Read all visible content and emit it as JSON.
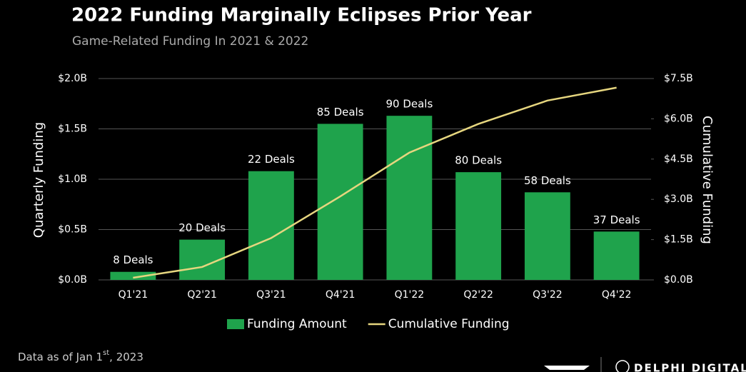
{
  "chart_data": {
    "type": "bar_line",
    "title": "2022 Funding Marginally Eclipses Prior Year",
    "subtitle": "Game-Related Funding In 2021 & 2022",
    "y_label": "Quarterly Funding",
    "y2_label": "Cumulative Funding",
    "categories": [
      "Q1'21",
      "Q2'21",
      "Q3'21",
      "Q4'21",
      "Q1'22",
      "Q2'22",
      "Q3'22",
      "Q4'22"
    ],
    "series": [
      {
        "name": "Funding Amount",
        "type": "bar",
        "color": "#1fa34c",
        "values": [
          0.08,
          0.4,
          1.08,
          1.55,
          1.63,
          1.07,
          0.87,
          0.48
        ],
        "bar_labels": [
          "8 Deals",
          "20 Deals",
          "22 Deals",
          "85 Deals",
          "90 Deals",
          "80 Deals",
          "58 Deals",
          "37 Deals"
        ]
      },
      {
        "name": "Cumulative Funding",
        "type": "line",
        "axis": "y2",
        "color": "#e6d67f",
        "values": [
          0.08,
          0.48,
          1.56,
          3.11,
          4.74,
          5.81,
          6.68,
          7.16
        ]
      }
    ],
    "ylim": [
      0,
      2
    ],
    "yticks": [
      {
        "value": 0,
        "label": "$0.0B"
      },
      {
        "value": 0.5,
        "label": "$0.5B"
      },
      {
        "value": 1,
        "label": "$1.0B"
      },
      {
        "value": 1.5,
        "label": "$1.5B"
      },
      {
        "value": 2,
        "label": "$2.0B"
      }
    ],
    "y2lim": [
      0,
      7.5
    ],
    "y2ticks": [
      {
        "value": 0,
        "label": "$0.0B"
      },
      {
        "value": 1.5,
        "label": "$1.5B"
      },
      {
        "value": 3,
        "label": "$3.0B"
      },
      {
        "value": 4.5,
        "label": "$4.5B"
      },
      {
        "value": 6,
        "label": "$6.0B"
      },
      {
        "value": 7.5,
        "label": "$7.5B"
      }
    ],
    "grid": true,
    "legend": "bottom",
    "footnote": {
      "text": "Data as of Jan 1",
      "sup": "st",
      "tail": ", 2023"
    },
    "brand": "DELPHI DIGITAL"
  }
}
